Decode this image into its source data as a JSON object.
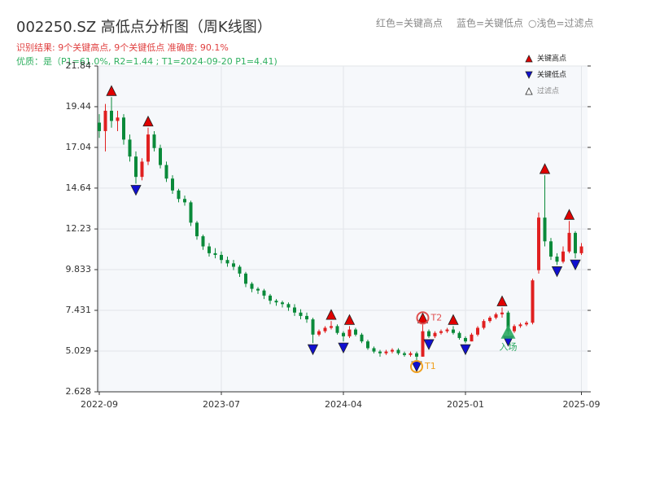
{
  "chart_data": {
    "type": "candlestick",
    "title": "002250.SZ 高低点分析图（周K线图）",
    "subtitle": "识别结果: 9个关键高点, 9个关键低点  准确度: 90.1%",
    "subtitle2": "优质：是（P1=61.0%, R2=1.44 ; T1=2024-09-20 P1=4.41)",
    "top_notes": [
      "红色=关键高点",
      "蓝色=关键低点",
      "○浅色=过滤点"
    ],
    "categories": [
      "2022-09",
      null,
      null,
      null,
      null,
      null,
      null,
      null,
      null,
      null,
      null,
      null,
      null,
      null,
      null,
      null,
      null,
      null,
      null,
      null,
      "2023-07",
      null,
      null,
      null,
      null,
      null,
      null,
      null,
      null,
      null,
      null,
      null,
      null,
      null,
      null,
      null,
      null,
      null,
      null,
      null,
      "2024-04",
      null,
      null,
      null,
      null,
      null,
      null,
      null,
      null,
      null,
      null,
      null,
      null,
      null,
      null,
      null,
      null,
      null,
      null,
      null,
      "2025-01",
      null,
      null,
      null,
      null,
      null,
      null,
      null,
      null,
      null,
      null,
      null,
      null,
      null,
      null,
      null,
      null,
      null,
      null,
      "2025-09"
    ],
    "open": [
      18.5,
      18.0,
      19.2,
      18.6,
      18.8,
      17.5,
      16.5,
      15.3,
      16.2,
      17.8,
      17.0,
      16.0,
      15.2,
      14.5,
      14.0,
      13.8,
      12.6,
      11.8,
      11.2,
      10.8,
      10.7,
      10.4,
      10.2,
      10.0,
      9.6,
      9.0,
      8.7,
      8.6,
      8.3,
      8.0,
      7.9,
      7.8,
      7.6,
      7.3,
      7.1,
      6.9,
      6.0,
      6.2,
      6.4,
      6.5,
      6.1,
      5.9,
      6.3,
      6.0,
      5.6,
      5.2,
      5.0,
      4.9,
      5.0,
      5.1,
      4.9,
      4.8,
      4.9,
      4.7,
      6.2,
      5.9,
      6.1,
      6.2,
      6.3,
      6.1,
      5.8,
      5.6,
      6.0,
      6.4,
      6.8,
      7.0,
      7.2,
      7.3,
      6.2,
      6.5,
      6.6,
      6.7,
      9.8,
      12.9,
      11.5,
      10.6,
      10.3,
      10.9,
      12.0,
      10.8
    ],
    "high": [
      19.0,
      19.6,
      20.0,
      19.2,
      19.0,
      17.8,
      16.8,
      16.4,
      18.2,
      18.0,
      17.2,
      16.2,
      15.4,
      14.6,
      14.2,
      13.9,
      12.7,
      11.9,
      11.4,
      11.1,
      10.9,
      10.6,
      10.4,
      10.1,
      9.7,
      9.1,
      8.8,
      8.7,
      8.4,
      8.1,
      8.0,
      7.9,
      7.8,
      7.5,
      7.3,
      7.0,
      6.3,
      6.5,
      6.8,
      6.6,
      6.2,
      6.5,
      6.4,
      6.1,
      5.7,
      5.3,
      5.1,
      5.1,
      5.2,
      5.2,
      5.0,
      5.0,
      5.0,
      6.6,
      6.3,
      6.2,
      6.3,
      6.4,
      6.5,
      6.2,
      5.9,
      6.1,
      6.5,
      6.9,
      7.1,
      7.3,
      7.6,
      7.4,
      6.6,
      6.7,
      6.8,
      9.3,
      13.2,
      15.4,
      11.7,
      10.8,
      11.2,
      12.7,
      12.1,
      11.4
    ],
    "low": [
      17.6,
      16.8,
      18.2,
      18.0,
      17.2,
      16.2,
      14.9,
      15.1,
      16.0,
      16.8,
      15.8,
      15.0,
      14.3,
      13.8,
      13.6,
      12.4,
      11.6,
      11.0,
      10.6,
      10.5,
      10.2,
      10.0,
      9.8,
      9.4,
      8.8,
      8.5,
      8.4,
      8.1,
      7.8,
      7.7,
      7.6,
      7.4,
      7.1,
      6.9,
      6.7,
      5.5,
      5.9,
      6.1,
      6.3,
      6.0,
      5.6,
      5.8,
      5.9,
      5.5,
      5.1,
      4.9,
      4.7,
      4.8,
      4.9,
      4.8,
      4.7,
      4.7,
      4.5,
      4.7,
      5.8,
      5.8,
      6.0,
      6.1,
      6.0,
      5.7,
      5.5,
      5.6,
      5.9,
      6.3,
      6.7,
      6.9,
      7.0,
      6.0,
      6.1,
      6.4,
      6.5,
      6.6,
      9.6,
      11.2,
      10.4,
      10.1,
      10.2,
      10.8,
      10.5,
      10.7
    ],
    "close": [
      18.0,
      19.2,
      18.6,
      18.8,
      17.5,
      16.5,
      15.3,
      16.2,
      17.8,
      17.0,
      16.0,
      15.2,
      14.5,
      14.0,
      13.8,
      12.6,
      11.8,
      11.2,
      10.8,
      10.7,
      10.4,
      10.2,
      10.0,
      9.6,
      9.0,
      8.7,
      8.6,
      8.3,
      8.0,
      7.9,
      7.8,
      7.6,
      7.3,
      7.1,
      6.9,
      6.0,
      6.2,
      6.4,
      6.5,
      6.1,
      5.9,
      6.3,
      6.0,
      5.6,
      5.2,
      5.0,
      4.9,
      5.0,
      5.1,
      4.9,
      4.8,
      4.9,
      4.7,
      6.2,
      5.9,
      6.1,
      6.2,
      6.3,
      6.1,
      5.8,
      5.6,
      6.0,
      6.4,
      6.8,
      7.0,
      7.2,
      7.3,
      6.2,
      6.5,
      6.6,
      6.7,
      9.2,
      12.9,
      11.5,
      10.6,
      10.3,
      10.9,
      12.0,
      10.8,
      11.2
    ],
    "up_color": "#e02020",
    "down_color": "#0a8a3a",
    "key_highs": {
      "name": "关键高点",
      "color": "#e00000",
      "indices": [
        2,
        8,
        38,
        41,
        53,
        58,
        66,
        73,
        77
      ]
    },
    "key_lows": {
      "name": "关键低点",
      "color": "#1010d0",
      "indices": [
        6,
        35,
        40,
        52,
        54,
        60,
        67,
        75,
        78
      ]
    },
    "filtered": {
      "name": "过滤点"
    },
    "annotations": [
      {
        "label": "T1",
        "index": 52,
        "color": "#f0a020"
      },
      {
        "label": "T2",
        "index": 53,
        "color": "#e05050"
      }
    ],
    "entry": {
      "label": "入场",
      "index": 67,
      "value": 6.1,
      "color": "#2aa860"
    },
    "ylim": [
      2.628,
      21.84
    ],
    "yticks": [
      2.628,
      5.029,
      7.431,
      9.833,
      12.23,
      14.64,
      17.04,
      19.44,
      21.84
    ],
    "grid": true
  }
}
